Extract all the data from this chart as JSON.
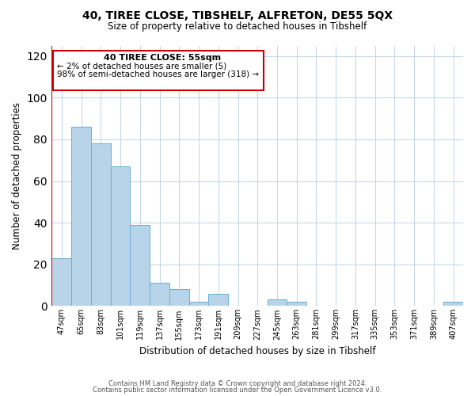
{
  "title": "40, TIREE CLOSE, TIBSHELF, ALFRETON, DE55 5QX",
  "subtitle": "Size of property relative to detached houses in Tibshelf",
  "xlabel": "Distribution of detached houses by size in Tibshelf",
  "ylabel": "Number of detached properties",
  "categories": [
    "47sqm",
    "65sqm",
    "83sqm",
    "101sqm",
    "119sqm",
    "137sqm",
    "155sqm",
    "173sqm",
    "191sqm",
    "209sqm",
    "227sqm",
    "245sqm",
    "263sqm",
    "281sqm",
    "299sqm",
    "317sqm",
    "335sqm",
    "353sqm",
    "371sqm",
    "389sqm",
    "407sqm"
  ],
  "values": [
    23,
    86,
    78,
    67,
    39,
    11,
    8,
    2,
    6,
    0,
    0,
    3,
    2,
    0,
    0,
    0,
    0,
    0,
    0,
    0,
    2
  ],
  "bar_color": "#b8d4e8",
  "bar_edge_color": "#6baed6",
  "ylim": [
    0,
    125
  ],
  "yticks": [
    0,
    20,
    40,
    60,
    80,
    100,
    120
  ],
  "annotation_title": "40 TIREE CLOSE: 55sqm",
  "annotation_line1": "← 2% of detached houses are smaller (5)",
  "annotation_line2": "98% of semi-detached houses are larger (318) →",
  "footer_line1": "Contains HM Land Registry data © Crown copyright and database right 2024.",
  "footer_line2": "Contains public sector information licensed under the Open Government Licence v3.0.",
  "background_color": "#ffffff",
  "grid_color": "#c8d8e8",
  "red_line_color": "#cc0000",
  "ann_box_color": "#cc0000"
}
